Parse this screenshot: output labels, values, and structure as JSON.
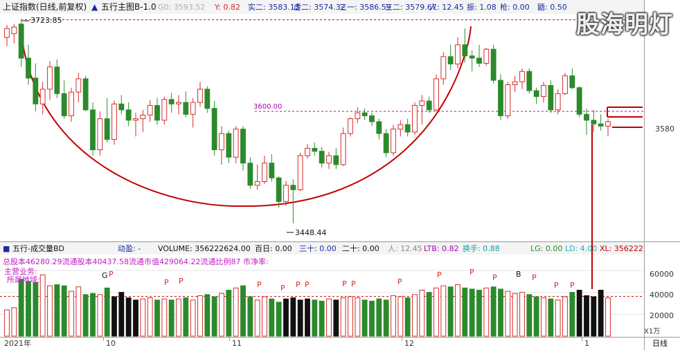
{
  "colors": {
    "up": "#d42a2a",
    "down": "#2b8a2b",
    "black": "#111111",
    "guide": "#c00000",
    "purple": "#b000b0",
    "blue": "#1a2aa0",
    "grid": "#e6e6e6"
  },
  "header": {
    "index_name": "上证指数(日线,前复权)",
    "indicator": "五行主图B-1.0",
    "g0_label": "G0: 3593.52",
    "y_label": "Y: 0.82",
    "items": [
      {
        "label": "实二: 3583.13",
        "color": "#1a2aa0"
      },
      {
        "label": "虚二: 3574.32",
        "color": "#1a2aa0"
      },
      {
        "label": "三一: 3586.59",
        "color": "#1a2aa0"
      },
      {
        "label": "三二: 3579.67",
        "color": "#1a2aa0"
      },
      {
        "label": "人: 12.45",
        "color": "#1a2aa0"
      },
      {
        "label": "振: 1.08",
        "color": "#1a2aa0"
      },
      {
        "label": "枪: 0.00",
        "color": "#1a2aa0"
      },
      {
        "label": "鼯: 0.50",
        "color": "#1a2aa0"
      }
    ]
  },
  "watermark": "股海明灯",
  "price_annotations": {
    "high": "3723.85",
    "low": "3448.44",
    "level_line": "3600.00"
  },
  "right_axis": {
    "price_label": "3580",
    "volume_ticks": [
      "60000",
      "40000",
      "20000"
    ],
    "volume_unit": "X1万"
  },
  "volume_header": {
    "title": "五行-成交量BD",
    "items": [
      {
        "label": "动盈: -",
        "color": "#1a2aa0"
      },
      {
        "label": "VOLUME: 356222624.00",
        "color": "#111111"
      },
      {
        "label": "百日: 0.00",
        "color": "#111111"
      },
      {
        "label": "三十: 0.00",
        "color": "#1a2aa0"
      },
      {
        "label": "二十: 0.00",
        "color": "#111111"
      },
      {
        "label": "人: 12.45",
        "color": "#888888"
      },
      {
        "label": "LTB: 0.82",
        "color": "#b000b0"
      },
      {
        "label": "换手: 0.88",
        "color": "#1aa0a0"
      },
      {
        "label": "LG: 0.00",
        "color": "#2b8a2b"
      },
      {
        "label": "LD: 4.00",
        "color": "#2ab0b0"
      },
      {
        "label": "XL: 356222",
        "color": "#c00000"
      }
    ]
  },
  "volume_info": {
    "line1": "总股本46280.29流通股本40437.58流通市值429064.22流通比例87   市净率:",
    "line2": "主营业务:",
    "line3": "所属地域:"
  },
  "x_axis": {
    "labels": [
      "2021年",
      "10",
      "11",
      "12",
      "1"
    ],
    "period": "日线"
  },
  "markers": [
    "G",
    "P",
    "P",
    "P",
    "P",
    "P",
    "P",
    "P",
    "P",
    "P",
    "P",
    "P",
    "P",
    "P",
    "B",
    "P",
    "P",
    "P"
  ],
  "chart_data": {
    "type": "candlestick",
    "y_price_range": [
      3440,
      3730
    ],
    "y_volume_range": [
      0,
      72000
    ],
    "candles": [
      {
        "o": 3700,
        "h": 3717,
        "l": 3688,
        "c": 3712,
        "v": 24000
      },
      {
        "o": 3705,
        "h": 3718,
        "l": 3692,
        "c": 3714,
        "v": 26000
      },
      {
        "o": 3718,
        "h": 3723.85,
        "l": 3660,
        "c": 3672,
        "v": 52000
      },
      {
        "o": 3672,
        "h": 3690,
        "l": 3636,
        "c": 3645,
        "v": 50000
      },
      {
        "o": 3645,
        "h": 3665,
        "l": 3600,
        "c": 3610,
        "v": 49000
      },
      {
        "o": 3610,
        "h": 3640,
        "l": 3596,
        "c": 3630,
        "v": 56000
      },
      {
        "o": 3630,
        "h": 3668,
        "l": 3615,
        "c": 3660,
        "v": 46000
      },
      {
        "o": 3660,
        "h": 3670,
        "l": 3618,
        "c": 3624,
        "v": 47000
      },
      {
        "o": 3624,
        "h": 3642,
        "l": 3590,
        "c": 3594,
        "v": 46000
      },
      {
        "o": 3594,
        "h": 3632,
        "l": 3586,
        "c": 3626,
        "v": 41000
      },
      {
        "o": 3626,
        "h": 3652,
        "l": 3612,
        "c": 3644,
        "v": 45000
      },
      {
        "o": 3644,
        "h": 3648,
        "l": 3600,
        "c": 3602,
        "v": 38000
      },
      {
        "o": 3602,
        "h": 3612,
        "l": 3540,
        "c": 3548,
        "v": 39000
      },
      {
        "o": 3548,
        "h": 3600,
        "l": 3540,
        "c": 3590,
        "v": 38000
      },
      {
        "o": 3590,
        "h": 3618,
        "l": 3558,
        "c": 3562,
        "v": 44000
      },
      {
        "o": 3562,
        "h": 3615,
        "l": 3555,
        "c": 3610,
        "v": 36000
      },
      {
        "o": 3610,
        "h": 3622,
        "l": 3596,
        "c": 3602,
        "v": 40000
      },
      {
        "o": 3602,
        "h": 3612,
        "l": 3580,
        "c": 3588,
        "v": 35000
      },
      {
        "o": 3588,
        "h": 3598,
        "l": 3566,
        "c": 3590,
        "v": 33000
      },
      {
        "o": 3590,
        "h": 3602,
        "l": 3572,
        "c": 3595,
        "v": 34000
      },
      {
        "o": 3595,
        "h": 3615,
        "l": 3586,
        "c": 3608,
        "v": 35000
      },
      {
        "o": 3608,
        "h": 3618,
        "l": 3582,
        "c": 3588,
        "v": 33000
      },
      {
        "o": 3588,
        "h": 3620,
        "l": 3582,
        "c": 3616,
        "v": 34000
      },
      {
        "o": 3616,
        "h": 3625,
        "l": 3598,
        "c": 3610,
        "v": 33000
      },
      {
        "o": 3610,
        "h": 3622,
        "l": 3596,
        "c": 3612,
        "v": 34000
      },
      {
        "o": 3612,
        "h": 3627,
        "l": 3592,
        "c": 3596,
        "v": 35000
      },
      {
        "o": 3596,
        "h": 3618,
        "l": 3578,
        "c": 3612,
        "v": 33000
      },
      {
        "o": 3612,
        "h": 3640,
        "l": 3606,
        "c": 3630,
        "v": 37000
      },
      {
        "o": 3630,
        "h": 3634,
        "l": 3598,
        "c": 3604,
        "v": 38000
      },
      {
        "o": 3604,
        "h": 3614,
        "l": 3540,
        "c": 3548,
        "v": 36000
      },
      {
        "o": 3548,
        "h": 3580,
        "l": 3528,
        "c": 3570,
        "v": 39000
      },
      {
        "o": 3570,
        "h": 3574,
        "l": 3530,
        "c": 3538,
        "v": 42000
      },
      {
        "o": 3538,
        "h": 3580,
        "l": 3530,
        "c": 3576,
        "v": 44000
      },
      {
        "o": 3576,
        "h": 3580,
        "l": 3520,
        "c": 3530,
        "v": 46000
      },
      {
        "o": 3530,
        "h": 3538,
        "l": 3495,
        "c": 3500,
        "v": 36000
      },
      {
        "o": 3500,
        "h": 3528,
        "l": 3494,
        "c": 3505,
        "v": 33000
      },
      {
        "o": 3505,
        "h": 3540,
        "l": 3502,
        "c": 3530,
        "v": 36000
      },
      {
        "o": 3530,
        "h": 3542,
        "l": 3505,
        "c": 3510,
        "v": 34000
      },
      {
        "o": 3510,
        "h": 3512,
        "l": 3470,
        "c": 3478,
        "v": 31000
      },
      {
        "o": 3478,
        "h": 3506,
        "l": 3472,
        "c": 3500,
        "v": 34000
      },
      {
        "o": 3500,
        "h": 3508,
        "l": 3448.44,
        "c": 3494,
        "v": 35000
      },
      {
        "o": 3494,
        "h": 3544,
        "l": 3492,
        "c": 3540,
        "v": 33000
      },
      {
        "o": 3540,
        "h": 3556,
        "l": 3536,
        "c": 3550,
        "v": 34000
      },
      {
        "o": 3550,
        "h": 3558,
        "l": 3540,
        "c": 3546,
        "v": 33000
      },
      {
        "o": 3546,
        "h": 3552,
        "l": 3524,
        "c": 3530,
        "v": 32000
      },
      {
        "o": 3530,
        "h": 3545,
        "l": 3522,
        "c": 3540,
        "v": 34000
      },
      {
        "o": 3540,
        "h": 3550,
        "l": 3522,
        "c": 3528,
        "v": 33000
      },
      {
        "o": 3528,
        "h": 3578,
        "l": 3526,
        "c": 3570,
        "v": 35000
      },
      {
        "o": 3570,
        "h": 3592,
        "l": 3566,
        "c": 3590,
        "v": 36000
      },
      {
        "o": 3590,
        "h": 3606,
        "l": 3584,
        "c": 3598,
        "v": 35000
      },
      {
        "o": 3598,
        "h": 3604,
        "l": 3588,
        "c": 3594,
        "v": 33000
      },
      {
        "o": 3594,
        "h": 3598,
        "l": 3580,
        "c": 3586,
        "v": 32000
      },
      {
        "o": 3586,
        "h": 3590,
        "l": 3562,
        "c": 3570,
        "v": 34000
      },
      {
        "o": 3570,
        "h": 3576,
        "l": 3538,
        "c": 3544,
        "v": 33000
      },
      {
        "o": 3544,
        "h": 3582,
        "l": 3540,
        "c": 3576,
        "v": 37000
      },
      {
        "o": 3576,
        "h": 3588,
        "l": 3566,
        "c": 3582,
        "v": 36000
      },
      {
        "o": 3582,
        "h": 3590,
        "l": 3566,
        "c": 3572,
        "v": 35000
      },
      {
        "o": 3572,
        "h": 3612,
        "l": 3568,
        "c": 3608,
        "v": 38000
      },
      {
        "o": 3608,
        "h": 3622,
        "l": 3582,
        "c": 3614,
        "v": 42000
      },
      {
        "o": 3614,
        "h": 3620,
        "l": 3598,
        "c": 3602,
        "v": 40000
      },
      {
        "o": 3602,
        "h": 3650,
        "l": 3600,
        "c": 3644,
        "v": 44000
      },
      {
        "o": 3644,
        "h": 3680,
        "l": 3636,
        "c": 3674,
        "v": 46000
      },
      {
        "o": 3674,
        "h": 3690,
        "l": 3656,
        "c": 3664,
        "v": 45000
      },
      {
        "o": 3664,
        "h": 3700,
        "l": 3658,
        "c": 3690,
        "v": 47000
      },
      {
        "o": 3690,
        "h": 3712,
        "l": 3666,
        "c": 3675,
        "v": 44000
      },
      {
        "o": 3675,
        "h": 3682,
        "l": 3654,
        "c": 3672,
        "v": 43000
      },
      {
        "o": 3672,
        "h": 3690,
        "l": 3660,
        "c": 3665,
        "v": 42000
      },
      {
        "o": 3665,
        "h": 3686,
        "l": 3662,
        "c": 3684,
        "v": 44000
      },
      {
        "o": 3684,
        "h": 3690,
        "l": 3638,
        "c": 3642,
        "v": 45000
      },
      {
        "o": 3642,
        "h": 3650,
        "l": 3588,
        "c": 3594,
        "v": 43000
      },
      {
        "o": 3594,
        "h": 3640,
        "l": 3590,
        "c": 3636,
        "v": 41000
      },
      {
        "o": 3636,
        "h": 3648,
        "l": 3626,
        "c": 3640,
        "v": 39000
      },
      {
        "o": 3640,
        "h": 3658,
        "l": 3630,
        "c": 3654,
        "v": 40000
      },
      {
        "o": 3654,
        "h": 3658,
        "l": 3624,
        "c": 3628,
        "v": 38000
      },
      {
        "o": 3628,
        "h": 3632,
        "l": 3610,
        "c": 3620,
        "v": 36000
      },
      {
        "o": 3620,
        "h": 3640,
        "l": 3612,
        "c": 3635,
        "v": 35000
      },
      {
        "o": 3635,
        "h": 3642,
        "l": 3598,
        "c": 3602,
        "v": 34000
      },
      {
        "o": 3602,
        "h": 3630,
        "l": 3596,
        "c": 3624,
        "v": 33000
      },
      {
        "o": 3624,
        "h": 3652,
        "l": 3622,
        "c": 3648,
        "v": 36000
      },
      {
        "o": 3648,
        "h": 3658,
        "l": 3630,
        "c": 3632,
        "v": 40000
      },
      {
        "o": 3632,
        "h": 3634,
        "l": 3592,
        "c": 3596,
        "v": 42000
      },
      {
        "o": 3596,
        "h": 3604,
        "l": 3568,
        "c": 3588,
        "v": 37000
      },
      {
        "o": 3588,
        "h": 3602,
        "l": 3572,
        "c": 3583,
        "v": 36000
      },
      {
        "o": 3583,
        "h": 3596,
        "l": 3574,
        "c": 3580,
        "v": 42000
      },
      {
        "o": 3580,
        "h": 3590,
        "l": 3566,
        "c": 3586,
        "v": 35000
      }
    ]
  }
}
